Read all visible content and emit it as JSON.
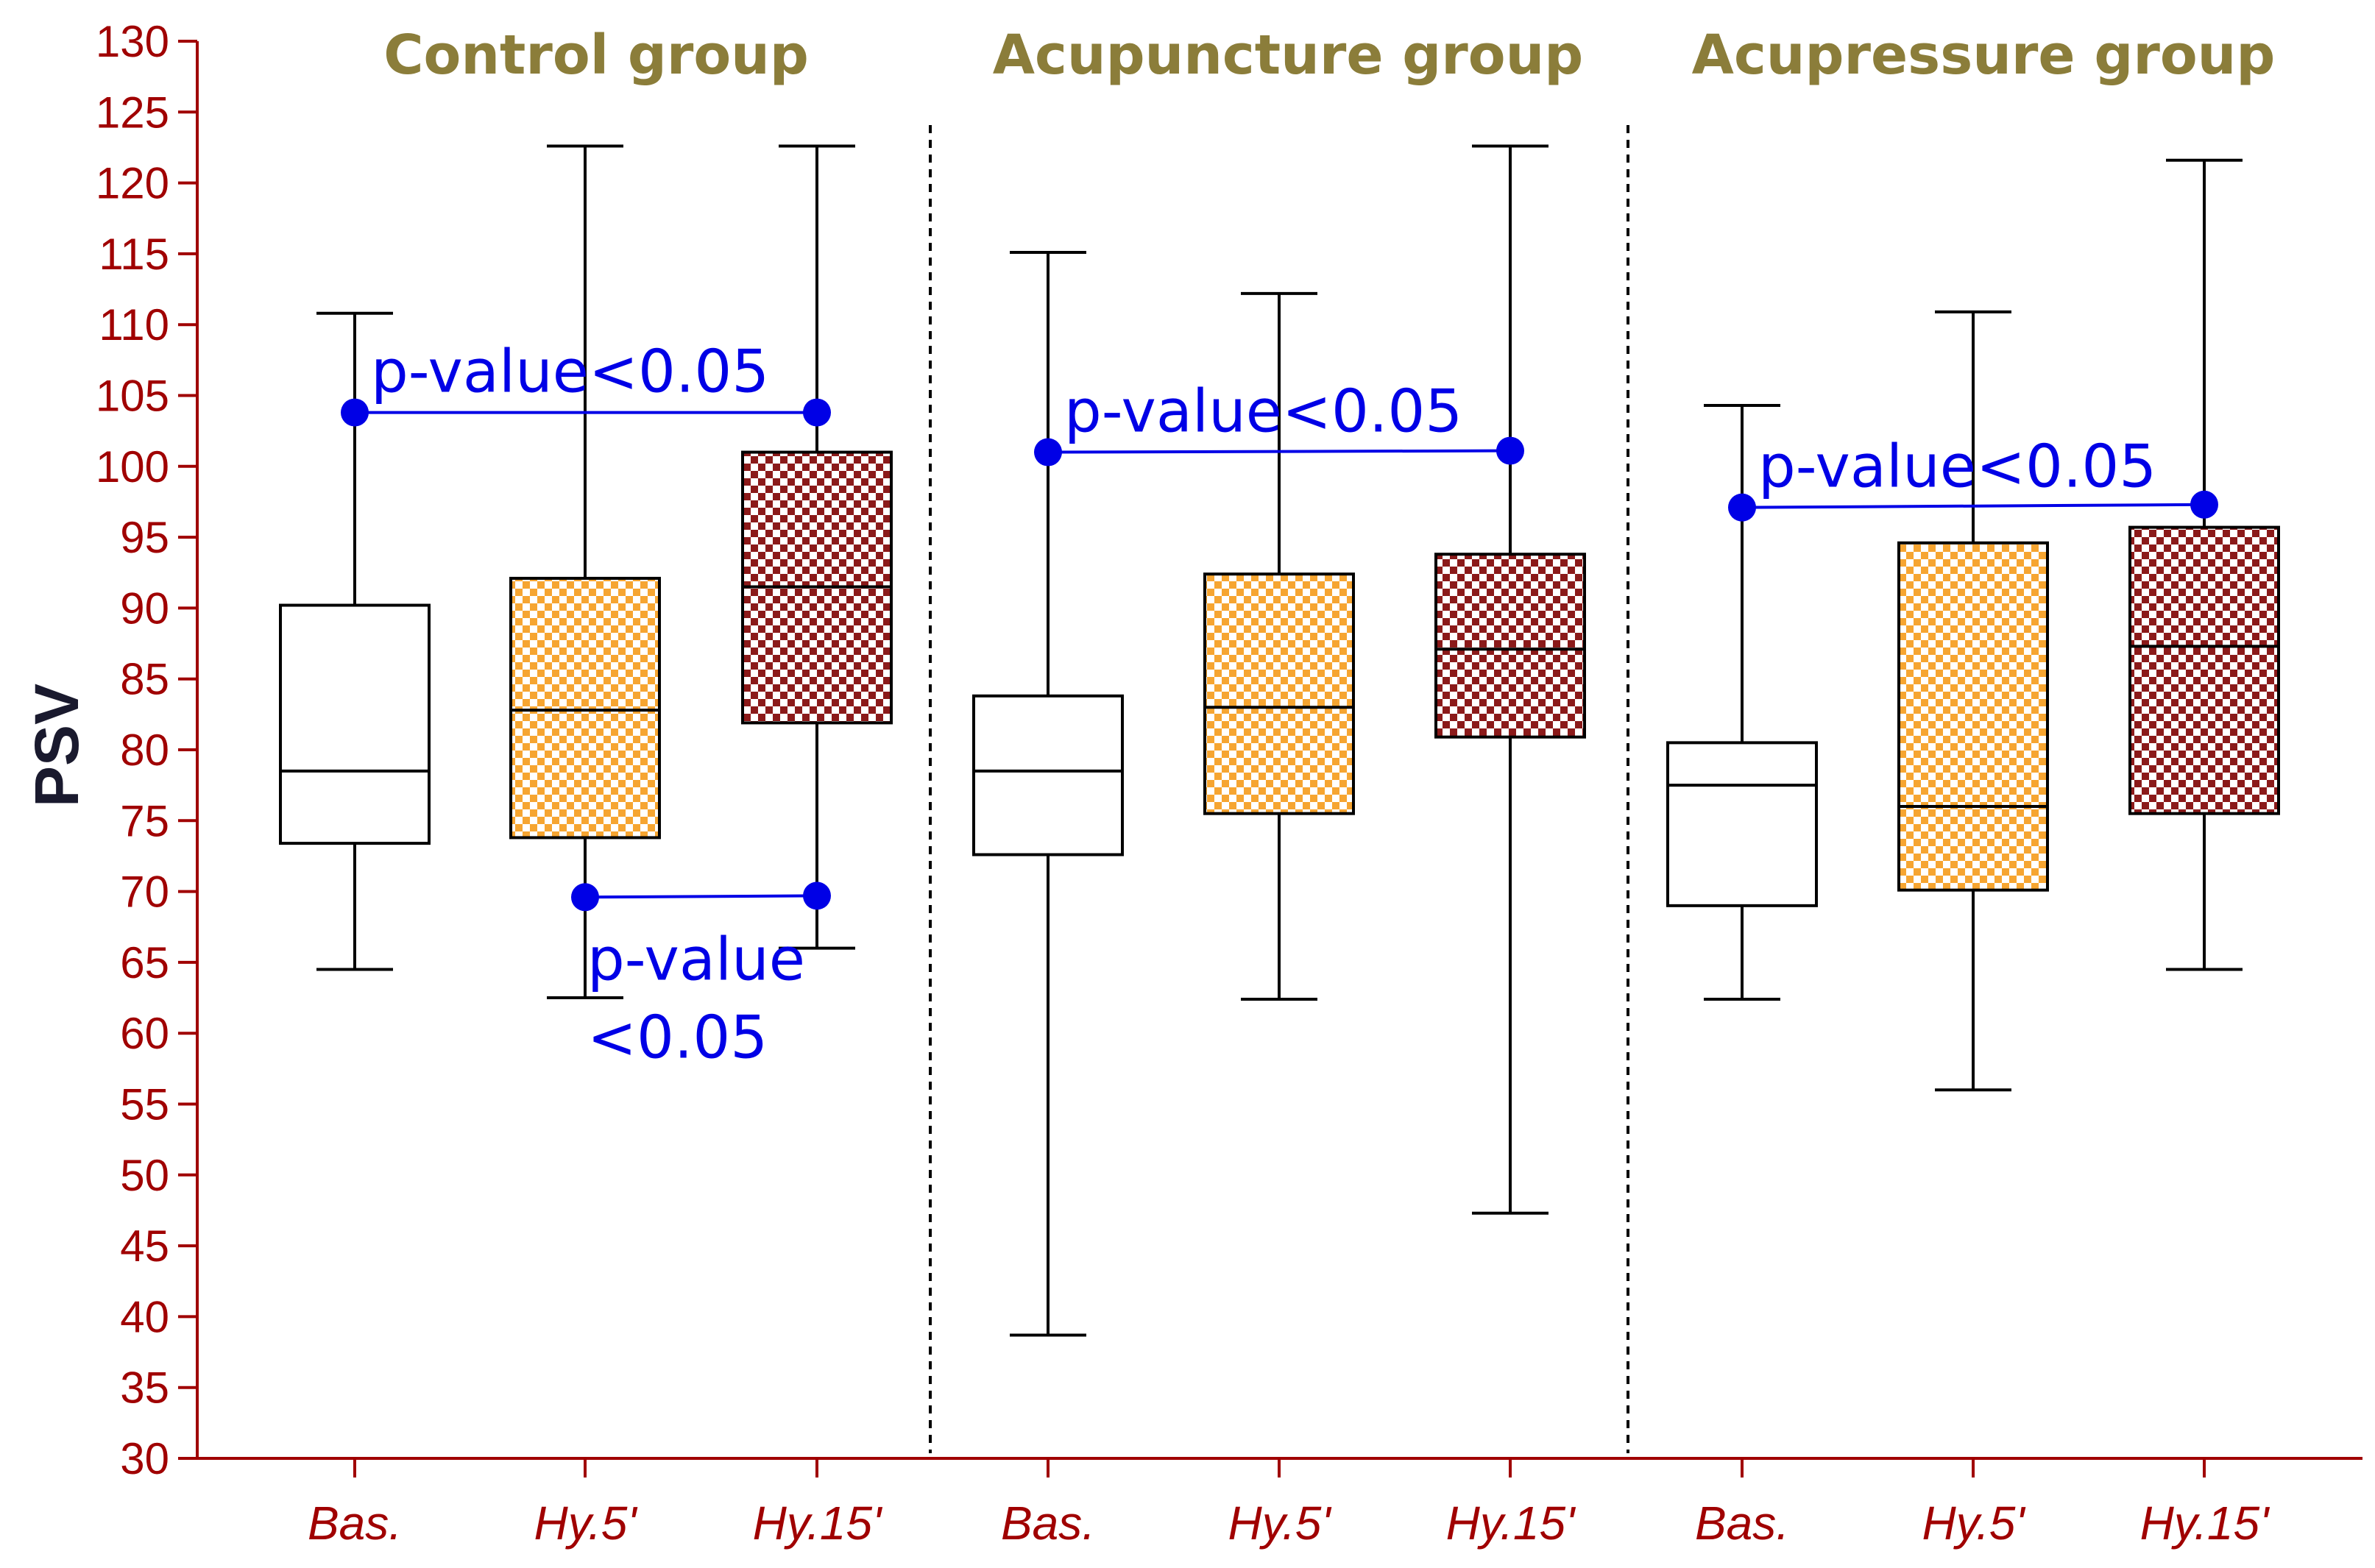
{
  "chart_data": {
    "type": "boxplot",
    "title": "",
    "ylabel": "PSV",
    "xlabel": "",
    "ylim": [
      30,
      130
    ],
    "ytick_step": 5,
    "grid": false,
    "groups": [
      "Control group",
      "Acupuncture group",
      "Acupressure group"
    ],
    "categories": [
      "Bas.",
      "Hy.5'",
      "Hy.15'",
      "Bas.",
      "Hy.5'",
      "Hy.15'",
      "Bas.",
      "Hy.5'",
      "Hy.15'"
    ],
    "boxes": [
      {
        "group": "Control group",
        "category": "Bas.",
        "min": 64.5,
        "q1": 73.4,
        "median": 78.5,
        "q3": 90.2,
        "max": 110.8,
        "fill": "white"
      },
      {
        "group": "Control group",
        "category": "Hy.5'",
        "min": 62.5,
        "q1": 73.8,
        "median": 82.8,
        "q3": 92.1,
        "max": 122.6,
        "fill": "orange-check"
      },
      {
        "group": "Control group",
        "category": "Hy.15'",
        "min": 66.0,
        "q1": 81.9,
        "median": 91.5,
        "q3": 101.0,
        "max": 122.6,
        "fill": "red-check"
      },
      {
        "group": "Acupuncture group",
        "category": "Bas.",
        "min": 38.7,
        "q1": 72.6,
        "median": 78.5,
        "q3": 83.8,
        "max": 115.1,
        "fill": "white"
      },
      {
        "group": "Acupuncture group",
        "category": "Hy.5'",
        "min": 62.4,
        "q1": 75.5,
        "median": 83.0,
        "q3": 92.4,
        "max": 112.2,
        "fill": "orange-check"
      },
      {
        "group": "Acupuncture group",
        "category": "Hy.15'",
        "min": 47.3,
        "q1": 80.9,
        "median": 87.1,
        "q3": 93.8,
        "max": 122.6,
        "fill": "red-check"
      },
      {
        "group": "Acupressure group",
        "category": "Bas.",
        "min": 62.4,
        "q1": 69.0,
        "median": 77.5,
        "q3": 80.5,
        "max": 104.3,
        "fill": "white"
      },
      {
        "group": "Acupressure group",
        "category": "Hy.5'",
        "min": 56.0,
        "q1": 70.1,
        "median": 76.0,
        "q3": 94.6,
        "max": 110.9,
        "fill": "orange-check"
      },
      {
        "group": "Acupressure group",
        "category": "Hy.15'",
        "min": 64.5,
        "q1": 75.5,
        "median": 87.3,
        "q3": 95.7,
        "max": 121.6,
        "fill": "red-check"
      }
    ],
    "annotations": [
      {
        "text": "p-value<0.05",
        "from": 0,
        "to": 2,
        "y1": 103.8,
        "y2": 103.8
      },
      {
        "text_lines": [
          "p-value",
          "<0.05"
        ],
        "from": 1,
        "to": 2,
        "y1": 69.6,
        "y2": 69.7
      },
      {
        "text": "p-value<0.05",
        "from": 3,
        "to": 5,
        "y1": 101.0,
        "y2": 101.1
      },
      {
        "text": "p-value<0.05",
        "from": 6,
        "to": 8,
        "y1": 97.1,
        "y2": 97.3
      }
    ],
    "colors": {
      "axis": "#a00000",
      "annotation": "#0000e6",
      "group_title": "#8b7d3a",
      "ylabel": "#1a1a2e",
      "orange_check": "#f6a531",
      "red_check": "#8b1a1a",
      "box_stroke": "#000000"
    }
  }
}
